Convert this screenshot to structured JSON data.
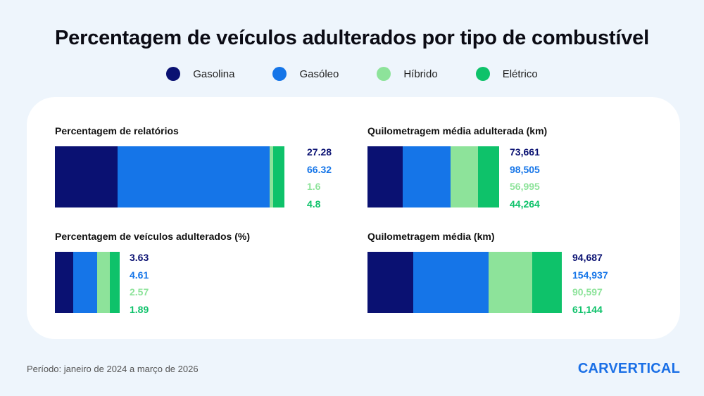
{
  "title": "Percentagem de veículos adulterados por tipo de combustível",
  "legend": [
    {
      "label": "Gasolina",
      "color": "#0a1172"
    },
    {
      "label": "Gasóleo",
      "color": "#1575e8"
    },
    {
      "label": "Híbrido",
      "color": "#8de39a"
    },
    {
      "label": "Elétrico",
      "color": "#0ec26a"
    }
  ],
  "chart_data": [
    {
      "type": "bar",
      "title": "Percentagem de relatórios",
      "categories": [
        "Gasolina",
        "Gasóleo",
        "Híbrido",
        "Elétrico"
      ],
      "values": [
        27.28,
        66.32,
        1.6,
        4.8
      ],
      "labels": [
        "27.28",
        "66.32",
        "1.6",
        "4.8"
      ],
      "stacked": true,
      "orientation": "horizontal"
    },
    {
      "type": "bar",
      "title": "Quilometragem média adulterada (km)",
      "categories": [
        "Gasolina",
        "Gasóleo",
        "Híbrido",
        "Elétrico"
      ],
      "values": [
        73661,
        98505,
        56995,
        44264
      ],
      "labels": [
        "73,661",
        "98,505",
        "56,995",
        "44,264"
      ],
      "stacked": true,
      "orientation": "horizontal"
    },
    {
      "type": "bar",
      "title": "Percentagem de veículos adulterados (%)",
      "categories": [
        "Gasolina",
        "Gasóleo",
        "Híbrido",
        "Elétrico"
      ],
      "values": [
        3.63,
        4.61,
        2.57,
        1.89
      ],
      "labels": [
        "3.63",
        "4.61",
        "2.57",
        "1.89"
      ],
      "stacked": true,
      "orientation": "horizontal"
    },
    {
      "type": "bar",
      "title": "Quilometragem média (km)",
      "categories": [
        "Gasolina",
        "Gasóleo",
        "Híbrido",
        "Elétrico"
      ],
      "values": [
        94687,
        154937,
        90597,
        61144
      ],
      "labels": [
        "94,687",
        "154,937",
        "90,597",
        "61,144"
      ],
      "stacked": true,
      "orientation": "horizontal"
    }
  ],
  "footer": "Período: janeiro de 2024 a março de 2026",
  "logo": "CARVERTICAL"
}
